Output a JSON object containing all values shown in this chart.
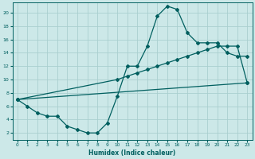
{
  "xlabel": "Humidex (Indice chaleur)",
  "bg_color": "#cce8e8",
  "grid_color": "#aacfcf",
  "line_color": "#005f5f",
  "xlim": [
    -0.5,
    23.5
  ],
  "ylim": [
    1.0,
    21.5
  ],
  "xticks": [
    0,
    1,
    2,
    3,
    4,
    5,
    6,
    7,
    8,
    9,
    10,
    11,
    12,
    13,
    14,
    15,
    16,
    17,
    18,
    19,
    20,
    21,
    22,
    23
  ],
  "yticks": [
    2,
    4,
    6,
    8,
    10,
    12,
    14,
    16,
    18,
    20
  ],
  "line1_x": [
    0,
    1,
    2,
    3,
    4,
    5,
    6,
    7,
    8,
    9,
    10,
    11,
    12,
    13,
    14,
    15,
    16,
    17,
    18,
    19,
    20,
    21,
    22,
    23
  ],
  "line1_y": [
    7.0,
    6.0,
    5.0,
    4.5,
    4.5,
    3.0,
    2.5,
    2.0,
    2.0,
    3.5,
    7.5,
    12.0,
    12.0,
    15.0,
    19.5,
    21.0,
    20.5,
    17.0,
    15.5,
    15.5,
    15.5,
    14.0,
    13.5,
    13.5
  ],
  "line2_x": [
    0,
    10,
    11,
    12,
    13,
    14,
    15,
    16,
    17,
    18,
    19,
    20,
    21,
    22,
    23
  ],
  "line2_y": [
    7.0,
    10.0,
    10.5,
    11.0,
    11.5,
    12.0,
    12.5,
    13.0,
    13.5,
    14.0,
    14.5,
    15.0,
    15.0,
    15.0,
    9.5
  ],
  "line3_x": [
    0,
    23
  ],
  "line3_y": [
    7.0,
    9.5
  ]
}
